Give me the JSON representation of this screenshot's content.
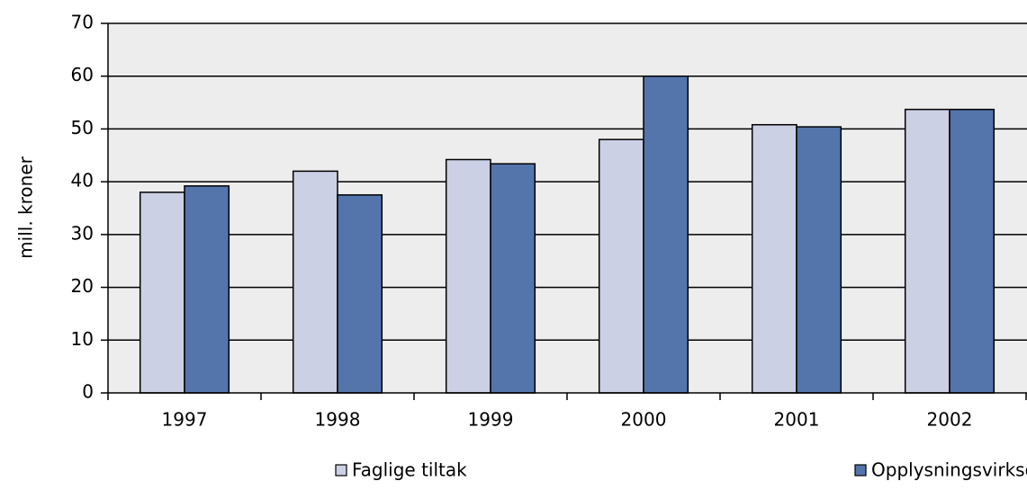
{
  "chart_data": {
    "type": "bar",
    "y_label": "mill. kroner",
    "categories": [
      "1997",
      "1998",
      "1999",
      "2000",
      "2001",
      "2002"
    ],
    "series": [
      {
        "name": "Faglige tiltak",
        "color": "#ccd0e4",
        "values": [
          38,
          42,
          44.2,
          48,
          50.8,
          53.7
        ]
      },
      {
        "name": "Opplysningsvirksomhet",
        "color": "#5474ac",
        "values": [
          39.2,
          37.5,
          43.4,
          60,
          50.4,
          53.7
        ]
      }
    ],
    "ylim": [
      0,
      70
    ],
    "yticks": [
      0,
      10,
      20,
      30,
      40,
      50,
      60,
      70
    ],
    "grid": true
  }
}
